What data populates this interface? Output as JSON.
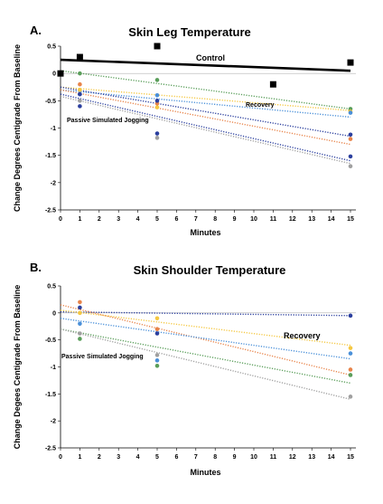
{
  "colors": {
    "control": "#000000",
    "series_green": "#5a9e5a",
    "series_orange": "#e8844a",
    "series_yellow": "#f5c842",
    "series_darkblue": "#2b3f9e",
    "series_lightblue": "#4a90d9",
    "series_gray": "#a0a0a0",
    "axis": "#000000"
  },
  "chart_data": [
    {
      "panel": "A.",
      "type": "scatter",
      "title": "Skin Leg Temperature",
      "xlabel": "Minutes",
      "ylabel": "Change Degrees Centigrade From Baseline",
      "xlim": [
        0,
        15
      ],
      "ylim": [
        -2.5,
        0.5
      ],
      "xticks": [
        "0",
        "1",
        "2",
        "3",
        "4",
        "5",
        "6",
        "7",
        "8",
        "9",
        "10",
        "11",
        "12",
        "13",
        "14",
        "15"
      ],
      "yticks": [
        "0.5",
        "0",
        "-0.5",
        "-1",
        "-1.5",
        "-2",
        "-2.5"
      ],
      "annotations": [
        "Control",
        "Recovery",
        "Passive Simulated Jogging"
      ],
      "control_points": [
        {
          "x": 0,
          "y": 0
        },
        {
          "x": 1,
          "y": 0.3
        },
        {
          "x": 5,
          "y": 0.5
        },
        {
          "x": 11,
          "y": -0.2
        },
        {
          "x": 15,
          "y": 0.2
        }
      ],
      "control_trend": [
        0.25,
        0.05
      ],
      "series": [
        {
          "color": "series_green",
          "points": [
            {
              "x": 1,
              "y": 0
            },
            {
              "x": 5,
              "y": -0.12
            },
            {
              "x": 15,
              "y": -0.65
            }
          ],
          "trend": [
            0.05,
            -0.65
          ]
        },
        {
          "color": "series_yellow",
          "points": [
            {
              "x": 1,
              "y": -0.3
            },
            {
              "x": 5,
              "y": -0.62
            },
            {
              "x": 15,
              "y": -0.7
            }
          ],
          "trend": [
            -0.25,
            -0.68
          ]
        },
        {
          "color": "series_lightblue",
          "points": [
            {
              "x": 1,
              "y": -0.38
            },
            {
              "x": 5,
              "y": -0.4
            },
            {
              "x": 15,
              "y": -0.72
            }
          ],
          "trend": [
            -0.3,
            -0.8
          ]
        },
        {
          "color": "series_orange",
          "points": [
            {
              "x": 1,
              "y": -0.2
            },
            {
              "x": 5,
              "y": -0.55
            },
            {
              "x": 15,
              "y": -1.2
            }
          ],
          "trend": [
            -0.3,
            -1.3
          ]
        },
        {
          "color": "series_darkblue",
          "points": [
            {
              "x": 1,
              "y": -0.38
            },
            {
              "x": 5,
              "y": -0.5
            },
            {
              "x": 15,
              "y": -1.12
            }
          ],
          "trend": [
            -0.25,
            -1.15
          ]
        },
        {
          "color": "series_darkblue",
          "points": [
            {
              "x": 1,
              "y": -0.6
            },
            {
              "x": 5,
              "y": -1.1
            },
            {
              "x": 15,
              "y": -1.52
            }
          ],
          "trend": [
            -0.38,
            -1.6
          ]
        },
        {
          "color": "series_gray",
          "points": [
            {
              "x": 1,
              "y": -0.5
            },
            {
              "x": 5,
              "y": -1.18
            },
            {
              "x": 15,
              "y": -1.7
            }
          ],
          "trend": [
            -0.42,
            -1.65
          ]
        }
      ]
    },
    {
      "panel": "B.",
      "type": "scatter",
      "title": "Skin Shoulder Temperature",
      "xlabel": "Minutes",
      "ylabel": "Change Degees Centigrade From Baseline",
      "xlim": [
        0,
        15
      ],
      "ylim": [
        -2.5,
        0.5
      ],
      "xticks": [
        "0",
        "1",
        "2",
        "3",
        "4",
        "5",
        "6",
        "7",
        "8",
        "9",
        "10",
        "11",
        "12",
        "13",
        "14",
        "15"
      ],
      "yticks": [
        "0.5",
        "0",
        "-0.5",
        "-1",
        "-1.5",
        "-2",
        "-2.5"
      ],
      "annotations": [
        "Recovery",
        "Passive Simulated Jogging"
      ],
      "series": [
        {
          "color": "series_darkblue",
          "points": [
            {
              "x": 1,
              "y": 0.1
            },
            {
              "x": 5,
              "y": -0.38
            },
            {
              "x": 15,
              "y": -0.05
            }
          ],
          "trend": [
            0.02,
            -0.05
          ]
        },
        {
          "color": "series_yellow",
          "points": [
            {
              "x": 1,
              "y": 0
            },
            {
              "x": 5,
              "y": -0.1
            },
            {
              "x": 15,
              "y": -0.65
            }
          ],
          "trend": [
            0.05,
            -0.6
          ]
        },
        {
          "color": "series_orange",
          "points": [
            {
              "x": 1,
              "y": 0.2
            },
            {
              "x": 5,
              "y": -0.3
            },
            {
              "x": 15,
              "y": -1.05
            }
          ],
          "trend": [
            0.15,
            -1.15
          ]
        },
        {
          "color": "series_lightblue",
          "points": [
            {
              "x": 1,
              "y": -0.2
            },
            {
              "x": 5,
              "y": -0.88
            },
            {
              "x": 15,
              "y": -0.75
            }
          ],
          "trend": [
            -0.1,
            -0.85
          ]
        },
        {
          "color": "series_green",
          "points": [
            {
              "x": 1,
              "y": -0.48
            },
            {
              "x": 5,
              "y": -0.98
            },
            {
              "x": 15,
              "y": -1.15
            }
          ],
          "trend": [
            -0.3,
            -1.3
          ]
        },
        {
          "color": "series_gray",
          "points": [
            {
              "x": 1,
              "y": -0.38
            },
            {
              "x": 5,
              "y": -0.78
            },
            {
              "x": 15,
              "y": -1.55
            }
          ],
          "trend": [
            -0.3,
            -1.6
          ]
        }
      ]
    }
  ]
}
